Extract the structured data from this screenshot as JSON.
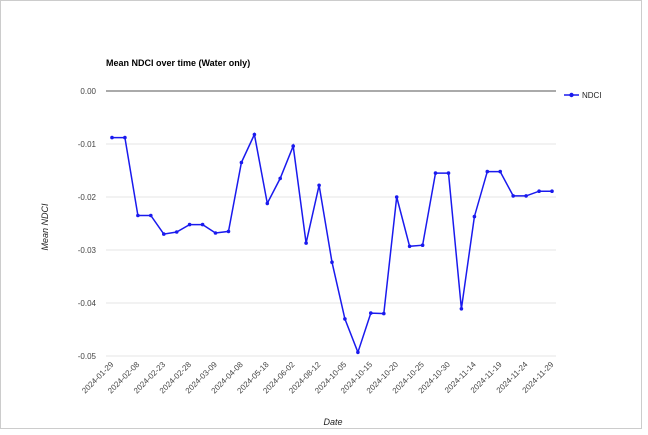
{
  "chart_data": {
    "type": "line",
    "title": "Mean NDCI over time (Water only)",
    "xlabel": "Date",
    "ylabel": "Mean NDCI",
    "ylim": [
      -0.05,
      0.0
    ],
    "yticks": [
      "0.00",
      "-0.01",
      "-0.02",
      "-0.03",
      "-0.04",
      "-0.05"
    ],
    "ytick_values": [
      0.0,
      -0.01,
      -0.02,
      -0.03,
      -0.04,
      -0.05
    ],
    "xticks": [
      "2024-01-29",
      "2024-02-08",
      "2024-02-23",
      "2024-02-28",
      "2024-03-09",
      "2024-04-08",
      "2024-05-18",
      "2024-06-02",
      "2024-08-12",
      "2024-10-05",
      "2024-10-15",
      "2024-10-20",
      "2024-10-25",
      "2024-10-30",
      "2024-11-14",
      "2024-11-19",
      "2024-11-24",
      "2024-11-29"
    ],
    "grid": true,
    "legend": "right",
    "color": "#1a1aee",
    "series": [
      {
        "name": "NDCI",
        "values": [
          -0.0088,
          -0.0088,
          -0.0235,
          -0.0235,
          -0.027,
          -0.0266,
          -0.0252,
          -0.0252,
          -0.0268,
          -0.0265,
          -0.0135,
          -0.0082,
          -0.0212,
          -0.0165,
          -0.0104,
          -0.0287,
          -0.0178,
          -0.0323,
          -0.043,
          -0.0493,
          -0.0419,
          -0.042,
          -0.02,
          -0.0293,
          -0.0291,
          -0.0155,
          -0.0155,
          -0.0411,
          -0.0237,
          -0.0152,
          -0.0152,
          -0.0198,
          -0.0198,
          -0.0189,
          -0.0189
        ]
      }
    ]
  }
}
